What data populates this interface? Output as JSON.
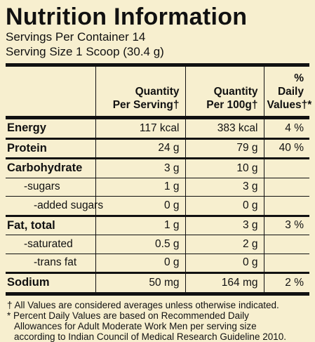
{
  "title": "Nutrition Information",
  "servings_per_container": "Servings Per Container 14",
  "serving_size": "Serving Size 1 Scoop (30.4 g)",
  "columns": {
    "per_serving_line1": "Quantity",
    "per_serving_line2": "Per Serving†",
    "per_100g_line1": "Quantity",
    "per_100g_line2": "Per 100g†",
    "dv_line1": "% Daily",
    "dv_line2": "Values†*"
  },
  "rows": [
    {
      "label": "Energy",
      "per_serving": "117 kcal",
      "per_100g": "383 kcal",
      "dv": "4 %"
    },
    {
      "label": "Protein",
      "per_serving": "24 g",
      "per_100g": "79 g",
      "dv": "40 %"
    },
    {
      "label": "Carbohydrate",
      "per_serving": "3 g",
      "per_100g": "10 g",
      "dv": ""
    },
    {
      "label": "-sugars",
      "per_serving": "1 g",
      "per_100g": "3 g",
      "dv": ""
    },
    {
      "label": "-added sugars",
      "per_serving": "0 g",
      "per_100g": "0 g",
      "dv": ""
    },
    {
      "label": "Fat, total",
      "per_serving": "1 g",
      "per_100g": "3 g",
      "dv": "3 %"
    },
    {
      "label": "-saturated",
      "per_serving": "0.5 g",
      "per_100g": "2 g",
      "dv": ""
    },
    {
      "label": "-trans fat",
      "per_serving": "0 g",
      "per_100g": "0 g",
      "dv": ""
    },
    {
      "label": "Sodium",
      "per_serving": "50 mg",
      "per_100g": "164 mg",
      "dv": "2 %"
    }
  ],
  "footnotes": {
    "line1": "† All Values are considered averages unless otherwise indicated.",
    "line2": "* Percent Daily Values are based on Recommended Daily",
    "line3": "Allowances for Adult Moderate Work Men per serving size",
    "line4": "according to Indian Council of Medical Research Guideline 2010."
  }
}
